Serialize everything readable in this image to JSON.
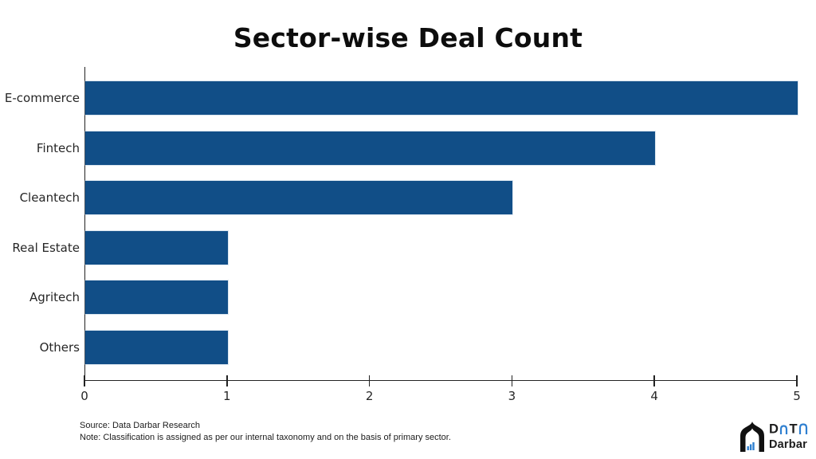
{
  "title": "Sector-wise Deal Count",
  "chart_data": {
    "type": "bar",
    "orientation": "horizontal",
    "title": "Sector-wise Deal Count",
    "categories": [
      "E-commerce",
      "Fintech",
      "Cleantech",
      "Real Estate",
      "Agritech",
      "Others"
    ],
    "values": [
      5,
      4,
      3,
      1,
      1,
      1
    ],
    "xlabel": "",
    "ylabel": "",
    "xlim": [
      0,
      5
    ],
    "x_ticks": [
      0,
      1,
      2,
      3,
      4,
      5
    ],
    "grid": false,
    "legend": false,
    "bar_color": "#114E87",
    "axis_color": "#222222"
  },
  "footer": {
    "source": "Source: Data Darbar Research",
    "note": "Note: Classification is assigned as per our internal taxonomy and on the basis of primary sector."
  },
  "logo": {
    "brand_word_top": "DaTa",
    "letter_d": "D",
    "letter_t": "T",
    "brand_bottom": "Darbar",
    "accent_color": "#2E7FD0",
    "icon": "darbar-building-icon"
  },
  "colors": {
    "background": "#ffffff",
    "bar": "#114E87",
    "title_text": "#0d0d0d",
    "axis_text": "#262626",
    "logo_blue": "#2E7FD0"
  }
}
